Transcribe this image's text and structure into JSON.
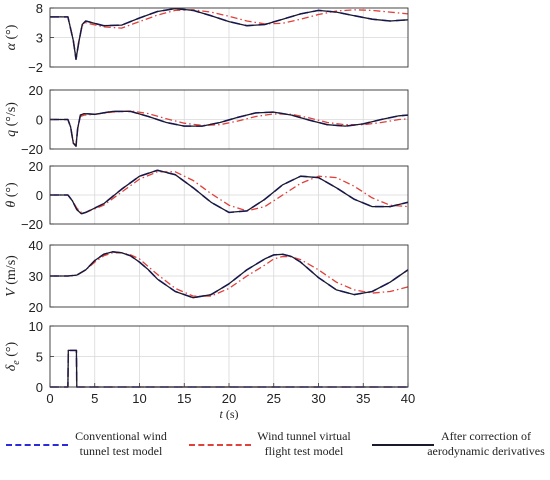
{
  "chart_data": [
    {
      "type": "line",
      "ylabel_var": "α",
      "ylabel_unit": "(°)",
      "ylim": [
        -2,
        8
      ],
      "yticks": [
        "8",
        "3",
        "−2"
      ],
      "ytick_values": [
        8,
        3,
        -2
      ],
      "xlim": [
        0,
        40
      ],
      "grid": true,
      "series": [
        {
          "name": "Conventional wind tunnel test model",
          "x": [
            0,
            2,
            2.6,
            2.9,
            3.2,
            3.6,
            4,
            6,
            8,
            10,
            12,
            14,
            16,
            18,
            20,
            22,
            24,
            26,
            28,
            30,
            32,
            34,
            36,
            38,
            40
          ],
          "y": [
            6.5,
            6.5,
            2.5,
            -0.7,
            2.0,
            5.2,
            5.8,
            5.0,
            5.1,
            6.3,
            7.4,
            7.9,
            7.6,
            6.7,
            5.7,
            5.0,
            5.2,
            6.1,
            7.0,
            7.6,
            7.3,
            6.7,
            6.1,
            5.8,
            6.0
          ]
        },
        {
          "name": "Wind tunnel virtual flight test model",
          "x": [
            0,
            2,
            2.6,
            2.9,
            3.2,
            3.6,
            4,
            6,
            8,
            10,
            12,
            14,
            16,
            18,
            20,
            22,
            24,
            26,
            28,
            30,
            32,
            34,
            36,
            38,
            40
          ],
          "y": [
            6.5,
            6.5,
            2.6,
            -0.5,
            2.2,
            5.0,
            5.5,
            4.8,
            4.6,
            5.7,
            6.8,
            7.6,
            7.7,
            7.3,
            6.6,
            5.8,
            5.3,
            5.4,
            6.1,
            6.9,
            7.5,
            7.7,
            7.6,
            7.3,
            7.0
          ]
        },
        {
          "name": "After correction of aerodynamic derivatives",
          "x": [
            0,
            2,
            2.6,
            2.9,
            3.2,
            3.6,
            4,
            6,
            8,
            10,
            12,
            14,
            16,
            18,
            20,
            22,
            24,
            26,
            28,
            30,
            32,
            34,
            36,
            38,
            40
          ],
          "y": [
            6.5,
            6.5,
            2.5,
            -0.7,
            2.0,
            5.2,
            5.8,
            5.0,
            5.1,
            6.3,
            7.4,
            7.9,
            7.6,
            6.7,
            5.7,
            5.0,
            5.2,
            6.1,
            7.0,
            7.6,
            7.3,
            6.7,
            6.1,
            5.8,
            6.0
          ]
        }
      ]
    },
    {
      "type": "line",
      "ylabel_var": "q",
      "ylabel_unit": "(°/s)",
      "ylim": [
        -20,
        20
      ],
      "yticks": [
        "20",
        "0",
        "−20"
      ],
      "ytick_values": [
        20,
        0,
        -20
      ],
      "xlim": [
        0,
        40
      ],
      "grid": true,
      "series": [
        {
          "name": "Conventional wind tunnel test model",
          "x": [
            0,
            2,
            2.3,
            2.6,
            2.9,
            3.1,
            3.4,
            3.8,
            5,
            7,
            9,
            11,
            13,
            15,
            17,
            19,
            21,
            23,
            25,
            27,
            29,
            31,
            33,
            35,
            37,
            39,
            40
          ],
          "y": [
            0,
            0,
            -5,
            -16,
            -18,
            -6,
            3,
            4,
            3.5,
            5.5,
            5.5,
            2.0,
            -2.0,
            -4.5,
            -4.5,
            -2.0,
            1.5,
            4.5,
            5.0,
            3.0,
            -0.5,
            -3.5,
            -4.5,
            -3.0,
            0,
            2.5,
            3.0
          ]
        },
        {
          "name": "Wind tunnel virtual flight test model",
          "x": [
            0,
            2,
            2.3,
            2.6,
            2.9,
            3.1,
            3.4,
            3.8,
            5,
            7,
            9,
            11,
            13,
            15,
            17,
            19,
            21,
            23,
            25,
            27,
            29,
            31,
            33,
            35,
            37,
            39,
            40
          ],
          "y": [
            0,
            0,
            -5,
            -15,
            -17,
            -6,
            2,
            3,
            3.5,
            5.0,
            5.8,
            4.0,
            0.5,
            -2.5,
            -4.0,
            -3.5,
            -1.0,
            2.0,
            3.8,
            3.5,
            1.0,
            -2.0,
            -3.5,
            -3.5,
            -2.0,
            0,
            0.5
          ]
        },
        {
          "name": "After correction of aerodynamic derivatives",
          "x": [
            0,
            2,
            2.3,
            2.6,
            2.9,
            3.1,
            3.4,
            3.8,
            5,
            7,
            9,
            11,
            13,
            15,
            17,
            19,
            21,
            23,
            25,
            27,
            29,
            31,
            33,
            35,
            37,
            39,
            40
          ],
          "y": [
            0,
            0,
            -5,
            -16,
            -18,
            -6,
            3,
            4,
            3.5,
            5.5,
            5.5,
            2.0,
            -2.0,
            -4.5,
            -4.5,
            -2.0,
            1.5,
            4.5,
            5.0,
            3.0,
            -0.5,
            -3.5,
            -4.5,
            -3.0,
            0,
            2.5,
            3.0
          ]
        }
      ]
    },
    {
      "type": "line",
      "ylabel_var": "θ",
      "ylabel_unit": "(°)",
      "ylim": [
        -20,
        20
      ],
      "yticks": [
        "20",
        "0",
        "−20"
      ],
      "ytick_values": [
        20,
        0,
        -20
      ],
      "xlim": [
        0,
        40
      ],
      "grid": true,
      "series": [
        {
          "name": "Conventional wind tunnel test model",
          "x": [
            0,
            2,
            2.5,
            3,
            3.5,
            4,
            6,
            8,
            10,
            12,
            14,
            16,
            18,
            20,
            22,
            24,
            26,
            28,
            30,
            32,
            34,
            36,
            38,
            40
          ],
          "y": [
            0,
            0,
            -4,
            -10,
            -13,
            -12,
            -6,
            4,
            13,
            17,
            14,
            5,
            -5,
            -12,
            -11,
            -3,
            7,
            13,
            12,
            5,
            -3,
            -8,
            -8,
            -5
          ]
        },
        {
          "name": "Wind tunnel virtual flight test model",
          "x": [
            0,
            2,
            2.5,
            3,
            3.5,
            4,
            6,
            8,
            10,
            12,
            14,
            16,
            18,
            20,
            22,
            24,
            26,
            28,
            30,
            32,
            34,
            36,
            38,
            40
          ],
          "y": [
            0,
            0,
            -4,
            -9,
            -12,
            -12,
            -7,
            2,
            11,
            16,
            16,
            10,
            1,
            -7,
            -11,
            -8,
            0,
            8,
            13,
            12,
            6,
            -2,
            -7,
            -8
          ]
        },
        {
          "name": "After correction of aerodynamic derivatives",
          "x": [
            0,
            2,
            2.5,
            3,
            3.5,
            4,
            6,
            8,
            10,
            12,
            14,
            16,
            18,
            20,
            22,
            24,
            26,
            28,
            30,
            32,
            34,
            36,
            38,
            40
          ],
          "y": [
            0,
            0,
            -4,
            -10,
            -13,
            -12,
            -6,
            4,
            13,
            17,
            14,
            5,
            -5,
            -12,
            -11,
            -3,
            7,
            13,
            12,
            5,
            -3,
            -8,
            -8,
            -5
          ]
        }
      ]
    },
    {
      "type": "line",
      "ylabel_var": "V",
      "ylabel_unit": "(m/s)",
      "ylim": [
        20,
        40
      ],
      "yticks": [
        "40",
        "30",
        "20"
      ],
      "ytick_values": [
        40,
        30,
        20
      ],
      "xlim": [
        0,
        40
      ],
      "grid": true,
      "series": [
        {
          "name": "Conventional wind tunnel test model",
          "x": [
            0,
            2,
            3,
            4,
            5,
            6,
            7,
            8,
            9,
            10,
            11,
            12,
            14,
            16,
            18,
            20,
            22,
            24,
            25,
            26,
            27,
            28,
            30,
            32,
            34,
            36,
            38,
            40
          ],
          "y": [
            30,
            30,
            30.3,
            32,
            35,
            37,
            37.8,
            37.5,
            36.5,
            34.5,
            32,
            29,
            25,
            23,
            24,
            27.5,
            32,
            35.5,
            36.8,
            37,
            36.3,
            34.5,
            29.5,
            25.5,
            24,
            25,
            28,
            32
          ]
        },
        {
          "name": "Wind tunnel virtual flight test model",
          "x": [
            0,
            2,
            3,
            4,
            5,
            6,
            7,
            8,
            9,
            10,
            11,
            12,
            14,
            16,
            18,
            20,
            22,
            24,
            25,
            26,
            27,
            28,
            30,
            32,
            34,
            36,
            38,
            40
          ],
          "y": [
            30,
            30,
            30.3,
            32,
            34.5,
            36.5,
            37.5,
            37.5,
            36.8,
            35.5,
            33,
            30.5,
            26,
            23.5,
            23.5,
            26,
            30,
            33.5,
            35.5,
            36.3,
            36.2,
            35.3,
            32,
            28,
            25.5,
            24.5,
            25,
            26.5
          ]
        },
        {
          "name": "After correction of aerodynamic derivatives",
          "x": [
            0,
            2,
            3,
            4,
            5,
            6,
            7,
            8,
            9,
            10,
            11,
            12,
            14,
            16,
            18,
            20,
            22,
            24,
            25,
            26,
            27,
            28,
            30,
            32,
            34,
            36,
            38,
            40
          ],
          "y": [
            30,
            30,
            30.3,
            32,
            35,
            37,
            37.8,
            37.5,
            36.5,
            34.5,
            32,
            29,
            25,
            23,
            24,
            27.5,
            32,
            35.5,
            36.8,
            37,
            36.3,
            34.5,
            29.5,
            25.5,
            24,
            25,
            28,
            32
          ]
        }
      ]
    },
    {
      "type": "line",
      "ylabel_var": "δ",
      "ylabel_sub": "e",
      "ylabel_unit": "(°)",
      "ylim": [
        0,
        10
      ],
      "yticks": [
        "10",
        "5",
        "0"
      ],
      "ytick_values": [
        10,
        5,
        0
      ],
      "xlim": [
        0,
        40
      ],
      "xticks": [
        "0",
        "5",
        "10",
        "15",
        "20",
        "25",
        "30",
        "35",
        "40"
      ],
      "xtick_values": [
        0,
        5,
        10,
        15,
        20,
        25,
        30,
        35,
        40
      ],
      "xlabel_var": "t",
      "xlabel_unit": "(s)",
      "grid": true,
      "series": [
        {
          "name": "Conventional wind tunnel test model",
          "x": [
            0,
            2,
            2.05,
            2.95,
            3.0,
            40
          ],
          "y": [
            0,
            0,
            6,
            6,
            0,
            0
          ]
        },
        {
          "name": "Wind tunnel virtual flight test model",
          "x": [
            0,
            2,
            2.05,
            2.95,
            3.0,
            40
          ],
          "y": [
            0,
            0,
            6,
            6,
            0,
            0
          ]
        },
        {
          "name": "After correction of aerodynamic derivatives",
          "x": [
            0,
            2,
            2.05,
            2.95,
            3.0,
            40
          ],
          "y": [
            0,
            0,
            6,
            6,
            0,
            0
          ]
        }
      ]
    }
  ],
  "legend": [
    {
      "lines": [
        "Conventional wind",
        "tunnel test model"
      ],
      "color": "#2b2bd9",
      "style": "dashed"
    },
    {
      "lines": [
        "Wind tunnel virtual",
        "flight test model"
      ],
      "color": "#e0413a",
      "style": "dashdot"
    },
    {
      "lines": [
        "After correction of",
        "aerodynamic derivatives"
      ],
      "color": "#1a1a2e",
      "style": "solid"
    }
  ],
  "colors": {
    "blue": "#2b2bd9",
    "red": "#e0413a",
    "black": "#1a1a2e",
    "grid": "#d8d8d8",
    "axis": "#333333"
  }
}
